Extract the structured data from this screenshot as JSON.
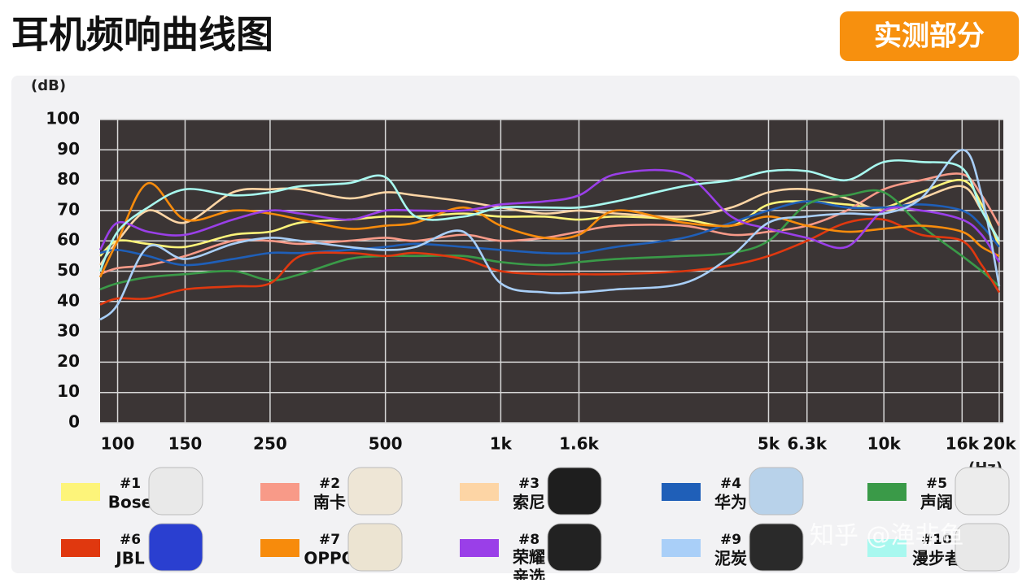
{
  "header": {
    "title": "耳机频响曲线图",
    "badge": "实测部分"
  },
  "watermark": "知乎 @渔非鱼",
  "chart_data": {
    "type": "line",
    "y_unit": "(dB)",
    "x_unit": "(Hz)",
    "xscale": "log",
    "xlim": [
      90,
      20500
    ],
    "xticks": [
      100,
      150,
      250,
      500,
      {
        "value": 1000,
        "label": "1k"
      },
      {
        "value": 1600,
        "label": "1.6k"
      },
      {
        "value": 5000,
        "label": "5k"
      },
      {
        "value": 6300,
        "label": "6.3k"
      },
      {
        "value": 10000,
        "label": "10k"
      },
      {
        "value": 16000,
        "label": "16k"
      },
      {
        "value": 20000,
        "label": "20k"
      }
    ],
    "ylim": [
      0,
      100
    ],
    "yticks": [
      0,
      10,
      20,
      30,
      40,
      50,
      60,
      70,
      80,
      90,
      100
    ],
    "grid": true,
    "x": [
      90,
      100,
      120,
      150,
      200,
      250,
      300,
      400,
      500,
      600,
      800,
      1000,
      1300,
      1600,
      2000,
      3000,
      4000,
      5000,
      6300,
      8000,
      10000,
      12500,
      16000,
      18000,
      20000
    ],
    "series": [
      {
        "number": "#1",
        "name": "Bose",
        "color": "#fdf47a",
        "values": [
          55,
          60,
          59,
          58,
          62,
          63,
          66,
          67,
          68,
          68,
          69,
          68,
          68,
          67,
          68,
          67,
          65,
          72,
          73,
          72,
          71,
          76,
          80,
          72,
          58
        ]
      },
      {
        "number": "#2",
        "name": "南卡",
        "color": "#f89a88",
        "values": [
          49,
          51,
          52,
          55,
          60,
          60,
          59,
          60,
          61,
          60,
          62,
          60,
          61,
          63,
          65,
          65,
          62,
          63,
          65,
          70,
          77,
          80,
          82,
          75,
          65
        ]
      },
      {
        "number": "#3",
        "name": "索尼",
        "color": "#fdd5a5",
        "values": [
          52,
          60,
          70,
          66,
          76,
          77,
          77,
          74,
          76,
          75,
          73,
          71,
          69,
          70,
          69,
          68,
          71,
          76,
          77,
          74,
          70,
          74,
          78,
          70,
          60
        ]
      },
      {
        "number": "#4",
        "name": "华为",
        "color": "#1f5fb8",
        "values": [
          56,
          57,
          55,
          52,
          54,
          56,
          56,
          57,
          58,
          59,
          58,
          57,
          56,
          56,
          58,
          61,
          66,
          70,
          73,
          71,
          71,
          72,
          70,
          65,
          58
        ]
      },
      {
        "number": "#5",
        "name": "声阔",
        "color": "#3a9a48",
        "values": [
          44,
          46,
          48,
          49,
          50,
          47,
          49,
          54,
          55,
          55,
          55,
          53,
          52,
          53,
          54,
          55,
          56,
          60,
          72,
          75,
          76,
          65,
          55,
          50,
          45
        ]
      },
      {
        "number": "#6",
        "name": "JBL",
        "color": "#e0380f",
        "values": [
          39,
          41,
          41,
          44,
          45,
          46,
          55,
          56,
          55,
          56,
          54,
          50,
          49,
          49,
          49,
          50,
          52,
          55,
          60,
          66,
          67,
          62,
          60,
          52,
          43
        ]
      },
      {
        "number": "#7",
        "name": "OPPO",
        "color": "#f78b0c",
        "values": [
          48,
          60,
          79,
          67,
          70,
          69,
          67,
          64,
          65,
          66,
          71,
          65,
          61,
          62,
          70,
          66,
          65,
          68,
          65,
          63,
          64,
          65,
          63,
          58,
          55
        ]
      },
      {
        "number": "#8",
        "name": "荣耀\n亲选",
        "color": "#9a3fe8",
        "values": [
          57,
          66,
          63,
          62,
          67,
          70,
          69,
          67,
          70,
          70,
          70,
          72,
          73,
          75,
          82,
          82,
          68,
          64,
          61,
          58,
          70,
          70,
          67,
          62,
          53
        ]
      },
      {
        "number": "#9",
        "name": "泥炭",
        "color": "#a9cff8",
        "values": [
          34,
          39,
          58,
          54,
          59,
          61,
          60,
          58,
          57,
          58,
          63,
          46,
          43,
          43,
          44,
          46,
          55,
          66,
          68,
          69,
          69,
          74,
          90,
          75,
          45
        ]
      },
      {
        "number": "#10",
        "name": "漫步者",
        "color": "#a8f8ef",
        "values": [
          50,
          63,
          71,
          77,
          75,
          76,
          78,
          79,
          81,
          68,
          68,
          71,
          71,
          71,
          73,
          78,
          80,
          83,
          83,
          80,
          86,
          86,
          84,
          70,
          60
        ]
      }
    ]
  }
}
